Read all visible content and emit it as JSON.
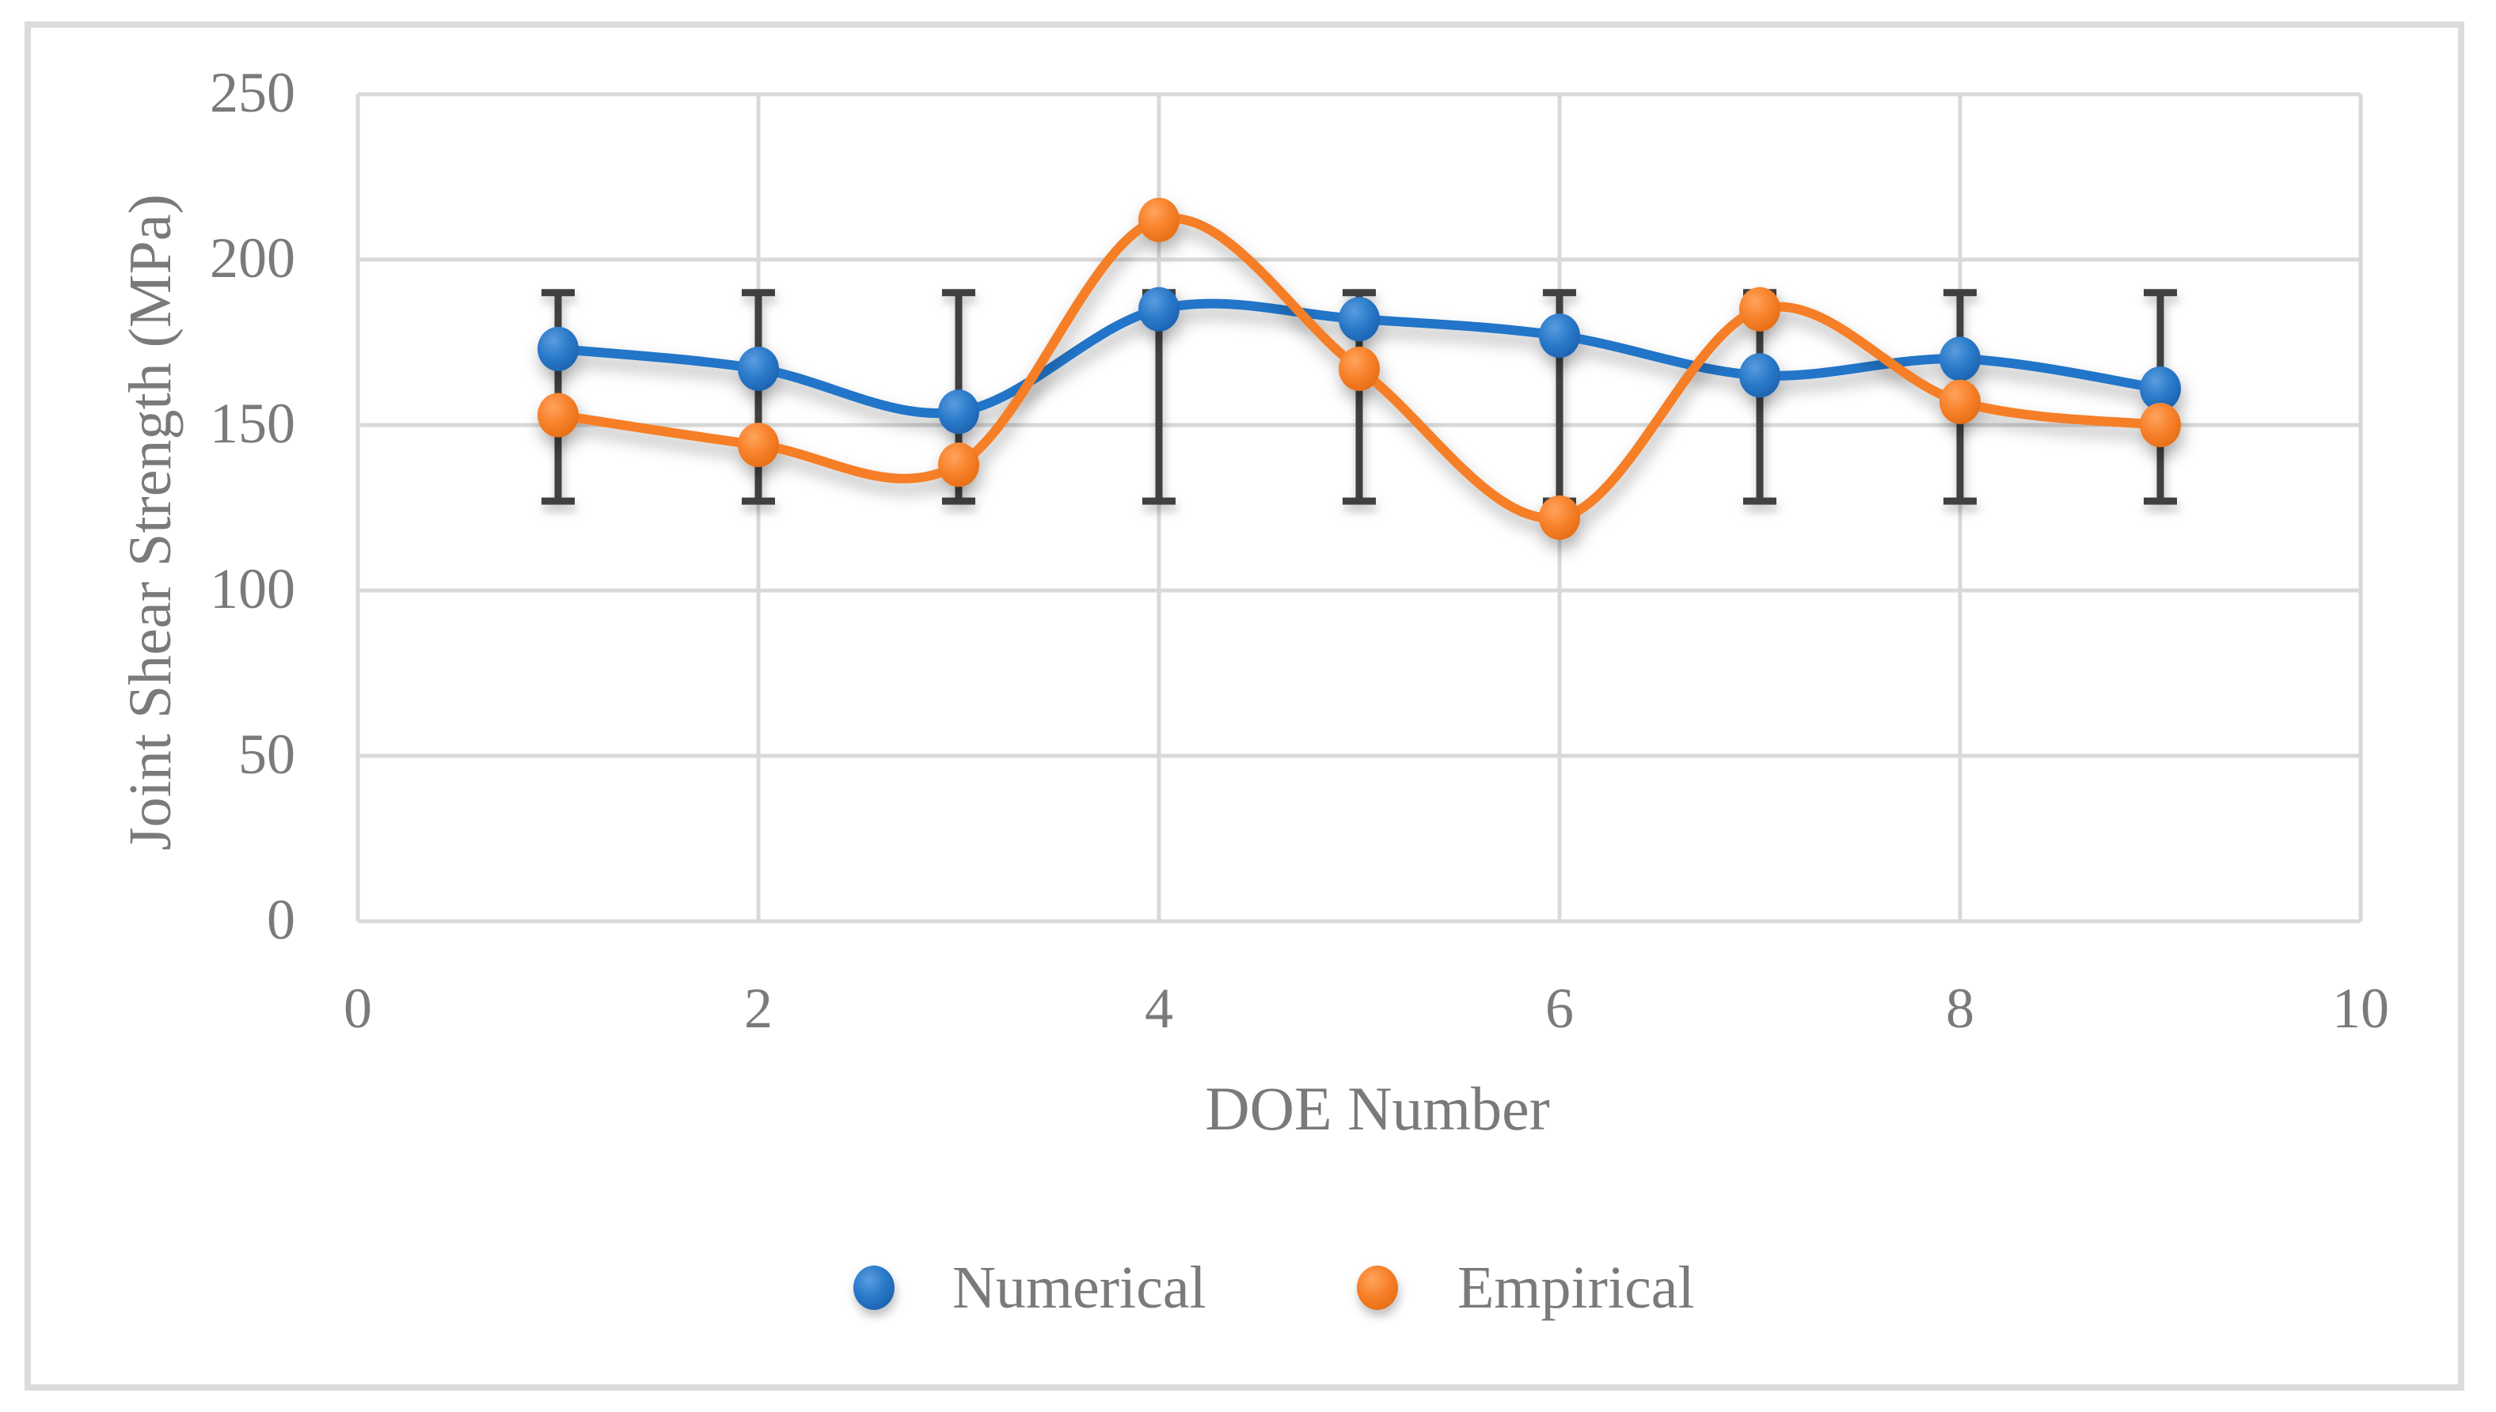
{
  "figure": {
    "background": "#FFFFFF",
    "border_color": "#DCDCDC"
  },
  "chart_data": {
    "type": "line",
    "title": "",
    "xlabel": "DOE Number",
    "ylabel": "Joint Shear Strength (MPa)",
    "xlim": [
      0,
      10
    ],
    "ylim": [
      0,
      250
    ],
    "x_ticks": [
      0,
      2,
      4,
      6,
      8,
      10
    ],
    "y_ticks": [
      0,
      50,
      100,
      150,
      200,
      250
    ],
    "grid": true,
    "gridline_color": "#D9D9D9",
    "axis_text_color": "#7A7A7A",
    "line_smoothing": true,
    "legend_position": "bottom-center",
    "x": [
      1,
      2,
      3,
      4,
      5,
      6,
      7,
      8,
      9
    ],
    "series": [
      {
        "name": "Numerical",
        "color": "#2374C8",
        "marker": "circle",
        "values": [
          173,
          167,
          154,
          185,
          182,
          177,
          165,
          170,
          161
        ]
      },
      {
        "name": "Empirical",
        "color": "#F57E27",
        "marker": "circle",
        "values": [
          153,
          144,
          138,
          212,
          167,
          122,
          185,
          157,
          150
        ]
      }
    ],
    "error_bars": {
      "applies_to_x": [
        1,
        2,
        3,
        4,
        5,
        6,
        7,
        8,
        9
      ],
      "upper": 190,
      "lower": 127,
      "color": "#3F3F3F"
    }
  }
}
